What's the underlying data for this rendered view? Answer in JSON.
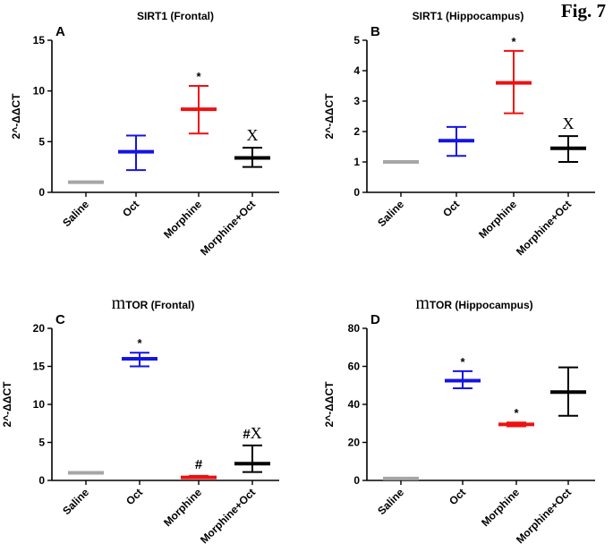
{
  "figure": {
    "label": "Fig. 7"
  },
  "chart_data": [
    {
      "type": "scatter",
      "panel": "A",
      "title": "SIRT1 (Frontal)",
      "title_prefix": "",
      "title_rest": "SIRT1 (Frontal)",
      "ylabel": "2^-ΔΔCT",
      "xlabel": "",
      "ylim": [
        0,
        15
      ],
      "yticks": [
        0,
        5,
        10,
        15
      ],
      "categories": [
        "Saline",
        "Oct",
        "Morphine",
        "Morphine+Oct"
      ],
      "mean": [
        1,
        4,
        8.2,
        3.4
      ],
      "upper": [
        1,
        5.6,
        10.5,
        4.4
      ],
      "lower": [
        1,
        2.2,
        5.8,
        2.5
      ],
      "colors": [
        "#a6a6a6",
        "#1414e6",
        "#ee1111",
        "#000000"
      ],
      "annotations": [
        "",
        "",
        "*",
        "X"
      ]
    },
    {
      "type": "scatter",
      "panel": "B",
      "title": "SIRT1 (Hippocampus)",
      "title_prefix": "",
      "title_rest": "SIRT1 (Hippocampus)",
      "ylabel": "2^-ΔΔCT",
      "xlabel": "",
      "ylim": [
        0,
        5
      ],
      "yticks": [
        0,
        1,
        2,
        3,
        4,
        5
      ],
      "categories": [
        "Saline",
        "Oct",
        "Morphine",
        "Morphine+Oct"
      ],
      "mean": [
        1,
        1.7,
        3.6,
        1.45
      ],
      "upper": [
        1,
        2.15,
        4.65,
        1.85
      ],
      "lower": [
        1,
        1.2,
        2.6,
        1.0
      ],
      "colors": [
        "#a6a6a6",
        "#1414e6",
        "#ee1111",
        "#000000"
      ],
      "annotations": [
        "",
        "",
        "*",
        "X"
      ]
    },
    {
      "type": "scatter",
      "panel": "C",
      "title": "mTOR (Frontal)",
      "title_prefix": "m",
      "title_rest": "TOR (Frontal)",
      "ylabel": "2^-ΔΔCT",
      "xlabel": "",
      "ylim": [
        0,
        20
      ],
      "yticks": [
        0,
        5,
        10,
        15,
        20
      ],
      "categories": [
        "Saline",
        "Oct",
        "Morphine",
        "Morphine+Oct"
      ],
      "mean": [
        1,
        16,
        0.4,
        2.2
      ],
      "upper": [
        1,
        16.8,
        0.6,
        4.6
      ],
      "lower": [
        1,
        15.0,
        0.3,
        1.1
      ],
      "colors": [
        "#a6a6a6",
        "#1414e6",
        "#ee1111",
        "#000000"
      ],
      "annotations": [
        "",
        "*",
        "#",
        "#X"
      ]
    },
    {
      "type": "scatter",
      "panel": "D",
      "title": "mTOR (Hippocampus)",
      "title_prefix": "m",
      "title_rest": "TOR (Hippocampus)",
      "ylabel": "2^-ΔΔCT",
      "xlabel": "",
      "ylim": [
        0,
        80
      ],
      "yticks": [
        0,
        20,
        40,
        60,
        80
      ],
      "categories": [
        "Saline",
        "Oct",
        "Morphine",
        "Morphine+Oct"
      ],
      "mean": [
        1,
        52.5,
        29.5,
        46.5
      ],
      "upper": [
        1,
        57.5,
        30.5,
        59.5
      ],
      "lower": [
        1,
        48.5,
        28.5,
        34
      ],
      "colors": [
        "#a6a6a6",
        "#1414e6",
        "#ee1111",
        "#000000"
      ],
      "annotations": [
        "",
        "*",
        "*",
        ""
      ]
    }
  ]
}
